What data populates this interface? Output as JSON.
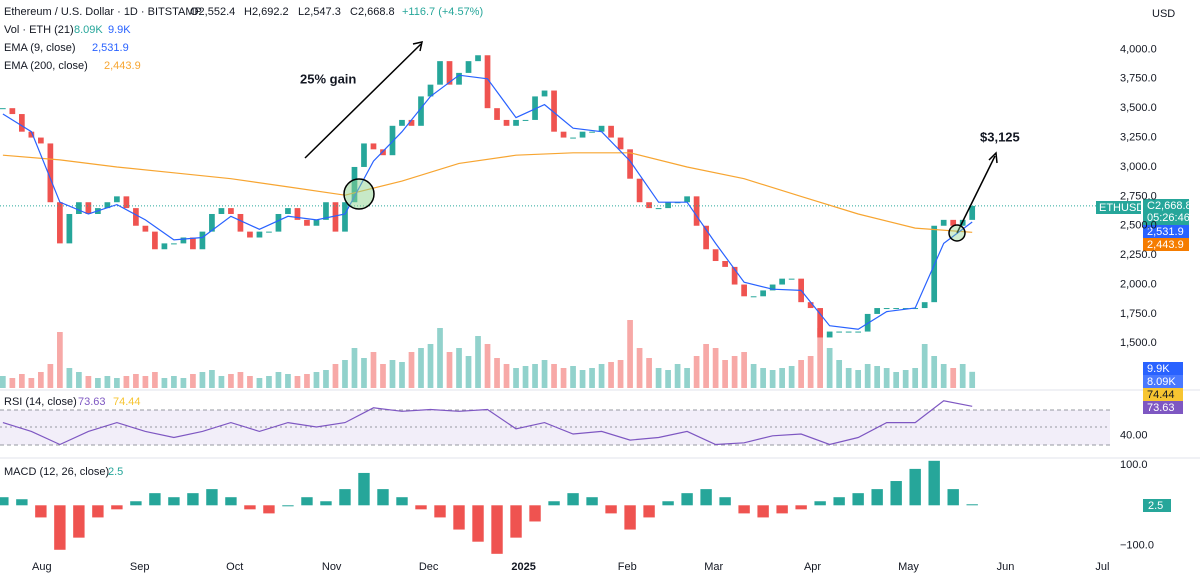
{
  "chart_data": {
    "type": "candlestick",
    "header": {
      "title": "Ethereum / U.S. Dollar · 1D · BITSTAMP",
      "open": "O2,552.4",
      "high": "H2,692.2",
      "low": "L2,547.3",
      "close": "C2,668.8",
      "change": "+116.7 (+4.57%)"
    },
    "currency": "USD",
    "up_color": "#26a69a",
    "down_color": "#ef5350",
    "xlim": [
      -0.3,
      116.5
    ],
    "xticks": [
      {
        "value": 4.1,
        "label": "Aug"
      },
      {
        "value": 14.4,
        "label": "Sep"
      },
      {
        "value": 24.4,
        "label": "Oct"
      },
      {
        "value": 34.6,
        "label": "Nov"
      },
      {
        "value": 44.8,
        "label": "Dec"
      },
      {
        "value": 54.8,
        "label": "2025"
      },
      {
        "value": 65.7,
        "label": "Feb"
      },
      {
        "value": 74.8,
        "label": "Mar"
      },
      {
        "value": 85.2,
        "label": "Apr"
      },
      {
        "value": 95.3,
        "label": "May"
      },
      {
        "value": 105.5,
        "label": "Jun"
      },
      {
        "value": 115.7,
        "label": "Jul"
      }
    ],
    "ylim": [
      1120,
      4420
    ],
    "yticks": [
      {
        "value": 1500,
        "label": "1,500.0"
      },
      {
        "value": 1750,
        "label": "1,750.0"
      },
      {
        "value": 2000,
        "label": "2,000.0"
      },
      {
        "value": 2250,
        "label": "2,250.0"
      },
      {
        "value": 2500,
        "label": "2,500.0"
      },
      {
        "value": 2750,
        "label": "2,750.0"
      },
      {
        "value": 3000,
        "label": "3,000.0"
      },
      {
        "value": 3250,
        "label": "3,250.0"
      },
      {
        "value": 3500,
        "label": "3,500.0"
      },
      {
        "value": 3750,
        "label": "3,750.0"
      },
      {
        "value": 4000,
        "label": "4,000.0"
      }
    ],
    "close": [
      3500,
      3450,
      3300,
      3250,
      3200,
      2700,
      2350,
      2600,
      2700,
      2600,
      2650,
      2700,
      2750,
      2650,
      2500,
      2450,
      2300,
      2350,
      2350,
      2400,
      2300,
      2450,
      2600,
      2650,
      2600,
      2450,
      2400,
      2450,
      2450,
      2600,
      2650,
      2550,
      2500,
      2550,
      2700,
      2450,
      2700,
      3000,
      3200,
      3150,
      3100,
      3350,
      3400,
      3350,
      3600,
      3700,
      3900,
      3700,
      3800,
      3900,
      3950,
      3500,
      3400,
      3350,
      3400,
      3400,
      3600,
      3650,
      3300,
      3250,
      3250,
      3300,
      3300,
      3350,
      3250,
      3150,
      2900,
      2700,
      2650,
      2650,
      2700,
      2700,
      2750,
      2500,
      2300,
      2200,
      2150,
      2000,
      1900,
      1900,
      1950,
      2000,
      2050,
      2050,
      1850,
      1800,
      1550,
      1600,
      1600,
      1600,
      1600,
      1750,
      1800,
      1800,
      1800,
      1800,
      1800,
      1850,
      2500,
      2550,
      2500,
      2550,
      2668.8
    ],
    "ema9": {
      "name": "EMA (9, close)",
      "value_label": "2,531.9",
      "color": "#2962ff",
      "x": [
        0,
        3,
        6,
        9,
        12,
        15,
        18,
        21,
        24,
        27,
        30,
        33,
        36,
        39,
        42,
        45,
        48,
        51,
        54,
        57,
        60,
        63,
        66,
        69,
        72,
        75,
        78,
        81,
        84,
        87,
        90,
        93,
        96,
        99,
        102
      ],
      "values": [
        3450,
        3300,
        2700,
        2600,
        2680,
        2550,
        2380,
        2400,
        2580,
        2470,
        2580,
        2550,
        2600,
        3050,
        3300,
        3600,
        3780,
        3750,
        3420,
        3530,
        3330,
        3300,
        3050,
        2700,
        2700,
        2350,
        2020,
        1960,
        1950,
        1650,
        1620,
        1770,
        1800,
        2350,
        2531.9
      ]
    },
    "ema200": {
      "name": "EMA (200, close)",
      "value_label": "2,443.9",
      "color": "#f7a531",
      "x": [
        0,
        6,
        12,
        18,
        24,
        30,
        36,
        42,
        48,
        54,
        60,
        66,
        72,
        78,
        84,
        90,
        96,
        102
      ],
      "values": [
        3100,
        3060,
        3000,
        2950,
        2900,
        2830,
        2760,
        2880,
        3030,
        3100,
        3120,
        3120,
        3000,
        2900,
        2750,
        2600,
        2480,
        2443.9
      ]
    },
    "volume": {
      "name": "Vol · ETH (21)",
      "value_label": "8.09K",
      "ma_label": "9.9K",
      "ylim": [
        0,
        100
      ],
      "values": [
        6,
        5,
        7,
        5,
        8,
        12,
        28,
        10,
        8,
        6,
        5,
        6,
        5,
        6,
        7,
        6,
        8,
        5,
        6,
        5,
        7,
        8,
        9,
        6,
        7,
        8,
        6,
        5,
        6,
        8,
        7,
        6,
        7,
        8,
        9,
        12,
        14,
        20,
        15,
        18,
        12,
        14,
        13,
        18,
        20,
        22,
        30,
        18,
        20,
        16,
        26,
        22,
        15,
        12,
        10,
        11,
        12,
        14,
        12,
        10,
        11,
        9,
        10,
        12,
        13,
        14,
        34,
        20,
        15,
        10,
        9,
        12,
        10,
        16,
        22,
        20,
        14,
        16,
        18,
        12,
        10,
        9,
        10,
        11,
        14,
        16,
        30,
        20,
        14,
        10,
        9,
        12,
        11,
        10,
        8,
        9,
        10,
        22,
        16,
        12,
        10,
        12,
        8.09
      ]
    },
    "rsi": {
      "name": "RSI (14, close)",
      "value_label": "73.63",
      "ma_label": "74.44",
      "color": "#7e57c2",
      "ylim": [
        18,
        90
      ],
      "yticks": [
        {
          "value": 40,
          "label": "40.00"
        }
      ],
      "x": [
        0,
        3,
        6,
        9,
        12,
        15,
        18,
        21,
        24,
        27,
        30,
        33,
        36,
        39,
        42,
        45,
        48,
        51,
        54,
        57,
        60,
        63,
        66,
        69,
        72,
        75,
        78,
        81,
        84,
        87,
        90,
        93,
        96,
        99,
        102
      ],
      "values": [
        55,
        45,
        30,
        45,
        55,
        45,
        38,
        45,
        55,
        45,
        55,
        50,
        55,
        72,
        68,
        70,
        68,
        70,
        48,
        55,
        42,
        45,
        35,
        38,
        45,
        30,
        32,
        40,
        42,
        30,
        38,
        55,
        55,
        80,
        73.63
      ]
    },
    "macd": {
      "name": "MACD (12, 26, close)",
      "value_label": "2.5",
      "ylim": [
        -160,
        112
      ],
      "yticks": [
        {
          "value": 100,
          "label": "100.0"
        },
        {
          "value": -100,
          "label": "−100.0"
        }
      ],
      "x": [
        0,
        2,
        4,
        6,
        8,
        10,
        12,
        14,
        16,
        18,
        20,
        22,
        24,
        26,
        28,
        30,
        32,
        34,
        36,
        38,
        40,
        42,
        44,
        46,
        48,
        50,
        52,
        54,
        56,
        58,
        60,
        62,
        64,
        66,
        68,
        70,
        72,
        74,
        76,
        78,
        80,
        82,
        84,
        86,
        88,
        90,
        92,
        94,
        96,
        98,
        100,
        102
      ],
      "values": [
        20,
        15,
        -30,
        -110,
        -80,
        -30,
        -10,
        10,
        30,
        20,
        30,
        40,
        20,
        -10,
        -20,
        0,
        20,
        10,
        40,
        80,
        40,
        20,
        -10,
        -30,
        -60,
        -90,
        -120,
        -80,
        -40,
        10,
        30,
        20,
        -20,
        -60,
        -30,
        10,
        30,
        40,
        20,
        -20,
        -30,
        -20,
        -10,
        10,
        20,
        30,
        40,
        60,
        90,
        110,
        40,
        2.5
      ]
    },
    "annotations": {
      "gain": "25% gain",
      "target": "$3,125"
    },
    "tags": {
      "symbol": "ETHUSD",
      "countdown": "05:26:46"
    }
  }
}
